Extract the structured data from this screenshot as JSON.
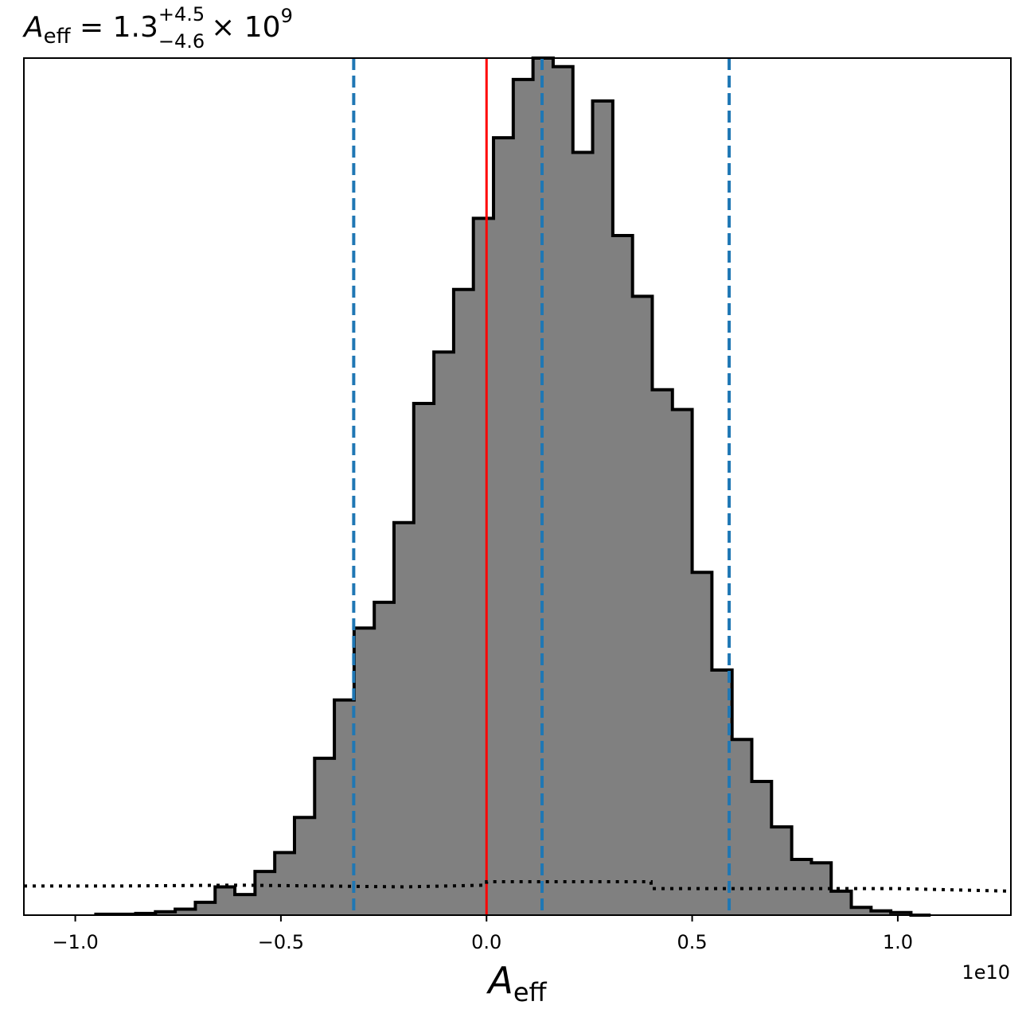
{
  "chart_data": {
    "type": "histogram",
    "title": {
      "symbol": "A",
      "symbol_sub": "eff",
      "median": "1.3",
      "upper": "+4.5",
      "lower": "−4.6",
      "multiplier": "× 10",
      "exponent": "9"
    },
    "xlabel": {
      "symbol": "A",
      "sub": "eff"
    },
    "x_offset_label": "1e10",
    "xlim": [
      -1.125,
      1.275
    ],
    "ylim": [
      0,
      1.0
    ],
    "xticks": [
      {
        "value": -1.0,
        "label": "−1.0"
      },
      {
        "value": -0.5,
        "label": "−0.5"
      },
      {
        "value": 0.0,
        "label": "0.0"
      },
      {
        "value": 0.5,
        "label": "0.5"
      },
      {
        "value": 1.0,
        "label": "1.0"
      }
    ],
    "histogram": {
      "fill_color": "#808080",
      "edge_color": "#000000",
      "bin_edges": [
        -0.95,
        -0.902,
        -0.853,
        -0.805,
        -0.757,
        -0.708,
        -0.66,
        -0.612,
        -0.563,
        -0.515,
        -0.467,
        -0.418,
        -0.37,
        -0.322,
        -0.273,
        -0.225,
        -0.177,
        -0.128,
        -0.08,
        -0.032,
        0.017,
        0.065,
        0.113,
        0.162,
        0.21,
        0.258,
        0.307,
        0.355,
        0.403,
        0.452,
        0.5,
        0.548,
        0.597,
        0.645,
        0.693,
        0.742,
        0.79,
        0.838,
        0.887,
        0.935,
        0.983,
        1.032,
        1.08
      ],
      "heights": [
        0.001,
        0.001,
        0.002,
        0.004,
        0.007,
        0.015,
        0.033,
        0.024,
        0.051,
        0.073,
        0.114,
        0.183,
        0.251,
        0.335,
        0.365,
        0.458,
        0.597,
        0.657,
        0.73,
        0.813,
        0.907,
        0.975,
        1.0,
        0.99,
        0.89,
        0.95,
        0.793,
        0.722,
        0.613,
        0.59,
        0.4,
        0.286,
        0.205,
        0.156,
        0.103,
        0.065,
        0.061,
        0.028,
        0.009,
        0.005,
        0.003,
        0.0
      ]
    },
    "vlines": [
      {
        "name": "lower",
        "value": -0.323,
        "color": "#1f77b4",
        "style": "dashed"
      },
      {
        "name": "median",
        "value": 0.135,
        "color": "#1f77b4",
        "style": "dashed"
      },
      {
        "name": "upper",
        "value": 0.59,
        "color": "#1f77b4",
        "style": "dashed"
      },
      {
        "name": "truth",
        "value": 0.0,
        "color": "#ff0000",
        "style": "solid"
      }
    ],
    "prior_line": {
      "color": "#000000",
      "style": "dotted",
      "x": [
        -1.125,
        -0.9,
        -0.6,
        -0.4,
        -0.2,
        0.0,
        0.0,
        0.4,
        0.4,
        1.0,
        1.275
      ],
      "y": [
        0.034,
        0.034,
        0.035,
        0.034,
        0.033,
        0.035,
        0.039,
        0.039,
        0.031,
        0.031,
        0.028
      ]
    },
    "grid": false,
    "legend": "none"
  }
}
